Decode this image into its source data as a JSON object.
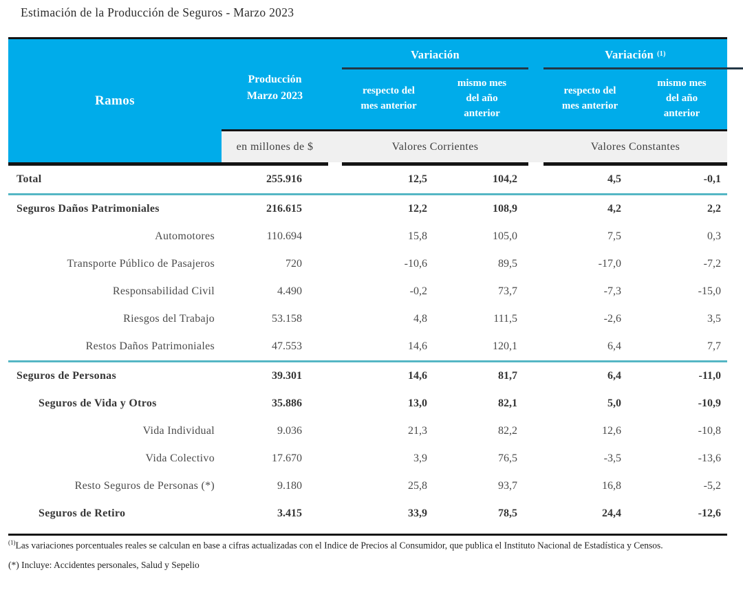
{
  "title": "Estimación de la Producción de Seguros - Marzo 2023",
  "colors": {
    "header_cyan": "#00ACEA",
    "teal_separator": "#54b6c4",
    "band_gray": "#f0f0f0",
    "border_black": "#141414",
    "group_underline_navy": "#233746"
  },
  "table": {
    "col_ramos": "Ramos",
    "col_produccion": "Producción\nMarzo  2023",
    "variacion1_label": "Variación",
    "variacion2_label": "Variación",
    "variacion2_sup": "(1)",
    "sub_respecto": "respecto del\nmes anterior",
    "sub_mismo": "mismo mes\ndel año\nanterior",
    "unit_label": "en millones de $",
    "band_corrientes": "Valores  Corrientes",
    "band_constantes": "Valores  Constantes",
    "rows": [
      {
        "label": "Total",
        "bold": true,
        "align": "left",
        "indent": 0,
        "values": [
          "255.916",
          "12,5",
          "104,2",
          "4,5",
          "-0,1"
        ],
        "separator_after": "teal"
      },
      {
        "label": "Seguros Daños  Patrimoniales",
        "bold": true,
        "align": "left",
        "indent": 0,
        "values": [
          "216.615",
          "12,2",
          "108,9",
          "4,2",
          "2,2"
        ]
      },
      {
        "label": "Automotores",
        "bold": false,
        "align": "right",
        "values": [
          "110.694",
          "15,8",
          "105,0",
          "7,5",
          "0,3"
        ]
      },
      {
        "label": "Transporte Público  de Pasajeros",
        "bold": false,
        "align": "right",
        "values": [
          "720",
          "-10,6",
          "89,5",
          "-17,0",
          "-7,2"
        ]
      },
      {
        "label": "Responsabilidad  Civil",
        "bold": false,
        "align": "right",
        "values": [
          "4.490",
          "-0,2",
          "73,7",
          "-7,3",
          "-15,0"
        ]
      },
      {
        "label": "Riesgos  del Trabajo",
        "bold": false,
        "align": "right",
        "values": [
          "53.158",
          "4,8",
          "111,5",
          "-2,6",
          "3,5"
        ]
      },
      {
        "label": "Restos Daños Patrimoniales",
        "bold": false,
        "align": "right",
        "values": [
          "47.553",
          "14,6",
          "120,1",
          "6,4",
          "7,7"
        ],
        "separator_after": "teal"
      },
      {
        "label": "Seguros de Personas",
        "bold": true,
        "align": "left",
        "indent": 0,
        "values": [
          "39.301",
          "14,6",
          "81,7",
          "6,4",
          "-11,0"
        ]
      },
      {
        "label": "Seguros de Vida  y Otros",
        "bold": true,
        "align": "left",
        "indent": 1,
        "values": [
          "35.886",
          "13,0",
          "82,1",
          "5,0",
          "-10,9"
        ]
      },
      {
        "label": "Vida  Individual",
        "bold": false,
        "align": "right",
        "values": [
          "9.036",
          "21,3",
          "82,2",
          "12,6",
          "-10,8"
        ]
      },
      {
        "label": "Vida  Colectivo",
        "bold": false,
        "align": "right",
        "values": [
          "17.670",
          "3,9",
          "76,5",
          "-3,5",
          "-13,6"
        ]
      },
      {
        "label": "Resto Seguros de Personas (*)",
        "bold": false,
        "align": "right",
        "values": [
          "9.180",
          "25,8",
          "93,7",
          "16,8",
          "-5,2"
        ]
      },
      {
        "label": "Seguros de Retiro",
        "bold": true,
        "align": "left",
        "indent": 1,
        "values": [
          "3.415",
          "33,9",
          "78,5",
          "24,4",
          "-12,6"
        ]
      }
    ]
  },
  "footnotes": {
    "fn1_sup": "(1)",
    "fn1_text": "Las variaciones porcentuales reales se calculan en base a cifras actualizadas con  el Indice de Precios al Consumidor, que publica el Instituto Nacional de Estadística y  Censos.",
    "fn2_text": "(*) Incluye: Accidentes personales, Salud y Sepelio"
  }
}
